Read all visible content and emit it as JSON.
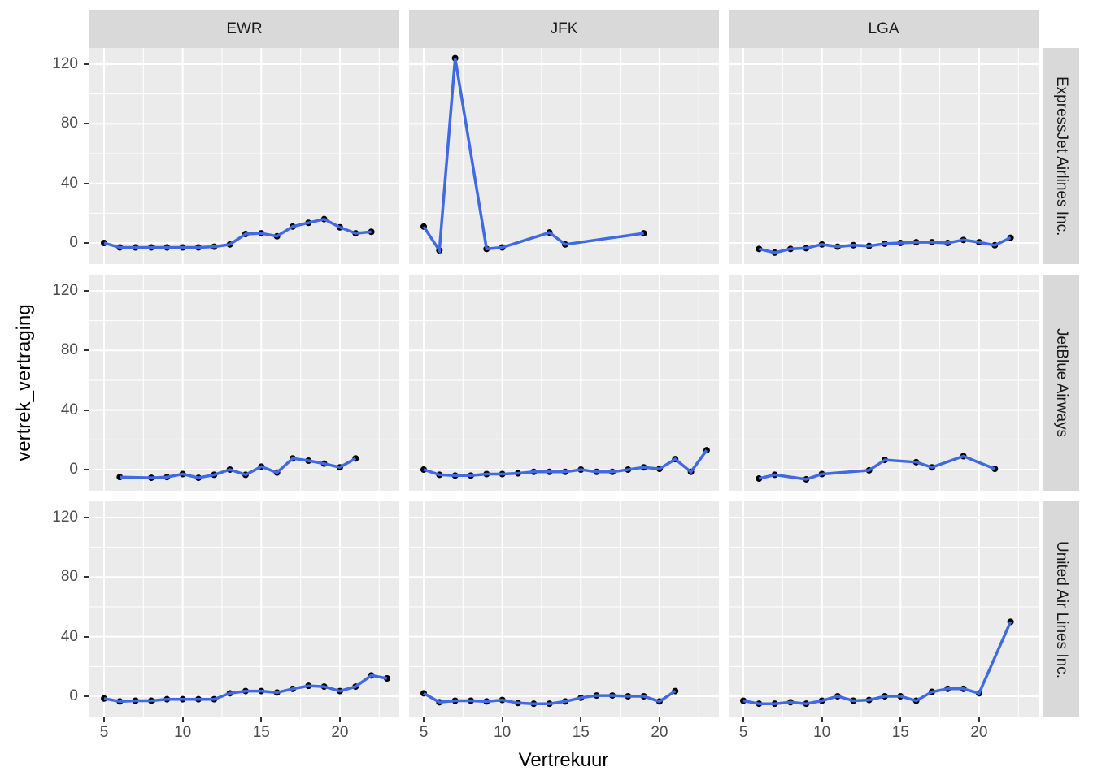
{
  "style": {
    "panel_bg": "#EBEBEB",
    "strip_bg": "#D9D9D9",
    "grid_color": "#FFFFFF",
    "line_color": "#4169E1",
    "point_color": "#000000",
    "tick_label_color": "#4D4D4D",
    "axis_title_color": "#000000",
    "strip_text_color": "#1A1A1A"
  },
  "chart_data": {
    "type": "line",
    "title": "",
    "xlabel": "Vertrekuur",
    "ylabel": "vertrek_vertraging",
    "legend": "none",
    "grid": true,
    "facet_cols": [
      "EWR",
      "JFK",
      "LGA"
    ],
    "facet_rows": [
      "ExpressJet Airlines Inc.",
      "JetBlue Airways",
      "United Air Lines Inc."
    ],
    "x_ticks": [
      5,
      10,
      15,
      20
    ],
    "y_ticks": [
      0,
      40,
      80,
      120
    ],
    "x_minor": [
      7.5,
      12.5,
      17.5,
      22.5
    ],
    "y_minor": [
      20,
      60,
      100
    ],
    "xlim": [
      4.1,
      23.9
    ],
    "ylim": [
      -14,
      131
    ],
    "panels": [
      {
        "row": 0,
        "col": 0,
        "airline": "ExpressJet Airlines Inc.",
        "airport": "EWR",
        "x": [
          5,
          6,
          7,
          8,
          9,
          10,
          11,
          12,
          13,
          14,
          15,
          16,
          17,
          18,
          19,
          20,
          21,
          22
        ],
        "y": [
          0,
          -3,
          -3,
          -3,
          -3,
          -3,
          -3,
          -2.5,
          -1,
          6,
          6.5,
          4.5,
          11,
          13.5,
          16,
          10.5,
          6.5,
          7.5
        ]
      },
      {
        "row": 0,
        "col": 1,
        "airline": "ExpressJet Airlines Inc.",
        "airport": "JFK",
        "x": [
          5,
          6,
          7,
          9,
          10,
          13,
          14,
          19
        ],
        "y": [
          11,
          -5,
          124,
          -4,
          -3,
          7,
          -1,
          6.5
        ]
      },
      {
        "row": 0,
        "col": 2,
        "airline": "ExpressJet Airlines Inc.",
        "airport": "LGA",
        "x": [
          6,
          7,
          8,
          9,
          10,
          11,
          12,
          13,
          14,
          15,
          16,
          17,
          18,
          19,
          20,
          21,
          22
        ],
        "y": [
          -4,
          -6.5,
          -4,
          -3.5,
          -1,
          -2.5,
          -1.5,
          -2,
          -0.5,
          0,
          0.5,
          0.5,
          0,
          2,
          0.5,
          -1.5,
          3.5
        ]
      },
      {
        "row": 1,
        "col": 0,
        "airline": "JetBlue Airways",
        "airport": "EWR",
        "x": [
          6,
          8,
          9,
          10,
          11,
          12,
          13,
          14,
          15,
          16,
          17,
          18,
          19,
          20,
          21
        ],
        "y": [
          -5,
          -5.5,
          -5,
          -3,
          -5.5,
          -3.5,
          0,
          -3.5,
          2,
          -2,
          7.5,
          6,
          4,
          1.5,
          7.5
        ]
      },
      {
        "row": 1,
        "col": 1,
        "airline": "JetBlue Airways",
        "airport": "JFK",
        "x": [
          5,
          6,
          7,
          8,
          9,
          10,
          11,
          12,
          13,
          14,
          15,
          16,
          17,
          18,
          19,
          20,
          21,
          22,
          23
        ],
        "y": [
          0,
          -3.5,
          -4,
          -4,
          -3,
          -3,
          -2.5,
          -1.5,
          -1.5,
          -1.5,
          0,
          -1.5,
          -1.5,
          0,
          1.5,
          0.5,
          7,
          -1.5,
          13
        ]
      },
      {
        "row": 1,
        "col": 2,
        "airline": "JetBlue Airways",
        "airport": "LGA",
        "x": [
          6,
          7,
          9,
          10,
          13,
          14,
          16,
          17,
          19,
          21
        ],
        "y": [
          -6,
          -3.5,
          -6.5,
          -3,
          -0.5,
          6.5,
          5,
          1.5,
          9,
          0.5
        ]
      },
      {
        "row": 2,
        "col": 0,
        "airline": "United Air Lines Inc.",
        "airport": "EWR",
        "x": [
          5,
          6,
          7,
          8,
          9,
          10,
          11,
          12,
          13,
          14,
          15,
          16,
          17,
          18,
          19,
          20,
          21,
          22,
          23
        ],
        "y": [
          -1.5,
          -3.5,
          -3,
          -3,
          -2,
          -2,
          -2,
          -2,
          2,
          3.5,
          3.5,
          2.5,
          5,
          7,
          6.5,
          3.5,
          6.5,
          14,
          12
        ]
      },
      {
        "row": 2,
        "col": 1,
        "airline": "United Air Lines Inc.",
        "airport": "JFK",
        "x": [
          5,
          6,
          7,
          8,
          9,
          10,
          11,
          12,
          13,
          14,
          15,
          16,
          17,
          18,
          19,
          20,
          21
        ],
        "y": [
          2,
          -4,
          -3,
          -3,
          -3.5,
          -2.5,
          -4.5,
          -5,
          -5,
          -3.5,
          -1,
          0.5,
          0.5,
          0,
          0,
          -3.5,
          3.5
        ]
      },
      {
        "row": 2,
        "col": 2,
        "airline": "United Air Lines Inc.",
        "airport": "LGA",
        "x": [
          5,
          6,
          7,
          8,
          9,
          10,
          11,
          12,
          13,
          14,
          15,
          16,
          17,
          18,
          19,
          20,
          22
        ],
        "y": [
          -3,
          -5,
          -5,
          -4,
          -5,
          -3,
          0,
          -3,
          -2.5,
          0,
          0,
          -3,
          3,
          5,
          5,
          2,
          50
        ]
      }
    ]
  }
}
